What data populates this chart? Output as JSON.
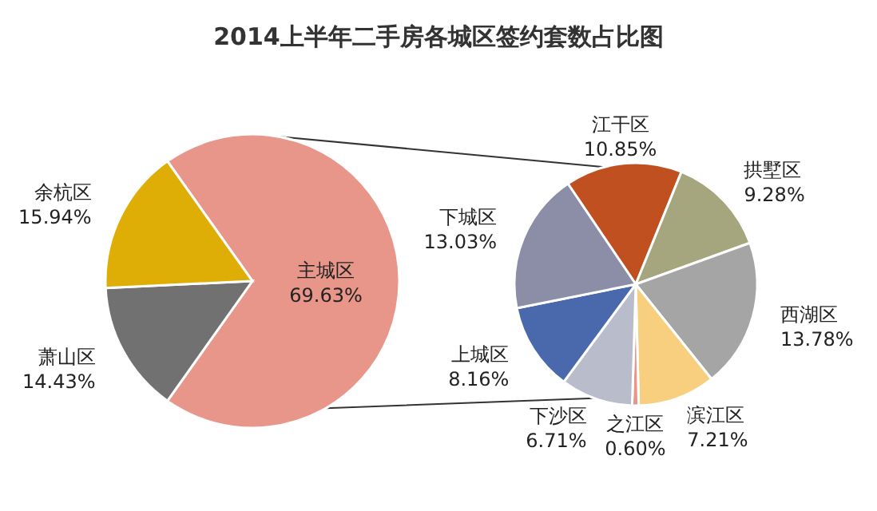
{
  "chart_data": [
    {
      "type": "pie",
      "title": "2014上半年二手房各城区签约套数占比图",
      "categories": [
        "主城区",
        "萧山区",
        "余杭区"
      ],
      "values": [
        69.63,
        14.43,
        15.94
      ],
      "value_labels": [
        "69.63%",
        "14.43%",
        "15.94%"
      ],
      "colors": [
        "#e8968a",
        "#717171",
        "#dfae06"
      ]
    },
    {
      "type": "pie",
      "categories": [
        "江干区",
        "拱墅区",
        "西湖区",
        "滨江区",
        "之江区",
        "下沙区",
        "上城区",
        "下城区"
      ],
      "values": [
        10.85,
        9.28,
        13.78,
        7.21,
        0.6,
        6.71,
        8.16,
        13.03
      ],
      "value_labels": [
        "10.85%",
        "9.28%",
        "13.78%",
        "7.21%",
        "0.60%",
        "6.71%",
        "8.16%",
        "13.03%"
      ],
      "colors": [
        "#c0501f",
        "#a5a57e",
        "#a5a5a5",
        "#f7cf7f",
        "#e8968a",
        "#b9bccb",
        "#4a69ad",
        "#8b8ea6"
      ]
    }
  ]
}
